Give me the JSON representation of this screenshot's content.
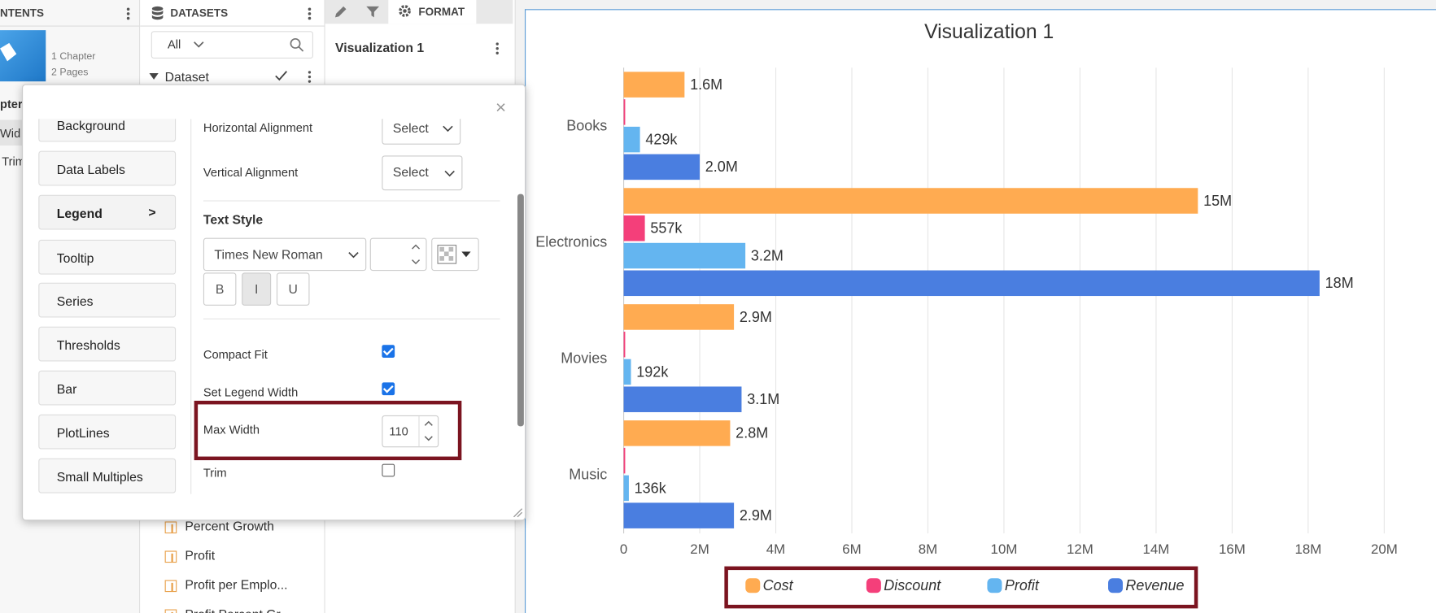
{
  "contents_panel": {
    "title": "NTENTS",
    "meta": [
      "1 Chapter",
      "2 Pages"
    ],
    "items": [
      "pter",
      "Wid",
      "Trim"
    ]
  },
  "datasets_panel": {
    "title": "DATASETS",
    "filter": "All",
    "dataset": "Dataset",
    "fields": [
      "Percent Growth",
      "Profit",
      "Profit per Emplo...",
      "Profit Percent Gr..."
    ]
  },
  "format_panel": {
    "tab": "FORMAT",
    "title": "Visualization 1"
  },
  "dialog": {
    "close": "×",
    "nav": [
      "Background",
      "Data Labels",
      "Legend",
      "Tooltip",
      "Series",
      "Thresholds",
      "Bar",
      "PlotLines",
      "Small Multiples"
    ],
    "nav_arrow": ">",
    "horizontal_alignment": {
      "label": "Horizontal Alignment",
      "value": "Select"
    },
    "vertical_alignment": {
      "label": "Vertical Alignment",
      "value": "Select"
    },
    "text_style": {
      "heading": "Text Style",
      "font": "Times New Roman",
      "buttons": [
        "B",
        "I",
        "U"
      ]
    },
    "compact_fit": {
      "label": "Compact Fit",
      "checked": true
    },
    "set_legend_width": {
      "label": "Set Legend Width",
      "checked": true
    },
    "max_width": {
      "label": "Max Width",
      "value": 110
    },
    "trim": {
      "label": "Trim",
      "checked": false
    }
  },
  "chart_data": {
    "type": "bar",
    "orientation": "horizontal",
    "title": "Visualization 1",
    "categories": [
      "Books",
      "Electronics",
      "Movies",
      "Music"
    ],
    "series": [
      {
        "name": "Cost",
        "color": "#ffab51",
        "values": [
          1600000,
          15100000,
          2900000,
          2800000
        ],
        "value_labels": [
          "1.6M",
          "15M",
          "2.9M",
          "2.8M"
        ]
      },
      {
        "name": "Discount",
        "color": "#f43f7a",
        "values": [
          40000,
          557000,
          40000,
          40000
        ],
        "value_labels": [
          null,
          "557k",
          null,
          null
        ]
      },
      {
        "name": "Profit",
        "color": "#64b5f0",
        "values": [
          429000,
          3200000,
          192000,
          136000
        ],
        "value_labels": [
          "429k",
          "3.2M",
          "192k",
          "136k"
        ]
      },
      {
        "name": "Revenue",
        "color": "#4a7ee0",
        "values": [
          2000000,
          18300000,
          3100000,
          2900000
        ],
        "value_labels": [
          "2.0M",
          "18M",
          "3.1M",
          "2.9M"
        ]
      }
    ],
    "xlim": [
      0,
      21000000
    ],
    "xticks": [
      0,
      {
        "value": 2000000,
        "label": "2M"
      },
      {
        "value": 4000000,
        "label": "4M"
      },
      {
        "value": 6000000,
        "label": "6M"
      },
      {
        "value": 8000000,
        "label": "8M"
      },
      {
        "value": 10000000,
        "label": "10M"
      },
      {
        "value": 12000000,
        "label": "12M"
      },
      {
        "value": 14000000,
        "label": "14M"
      },
      {
        "value": 16000000,
        "label": "16M"
      },
      {
        "value": 18000000,
        "label": "18M"
      },
      {
        "value": 20000000,
        "label": "20M"
      }
    ],
    "grid": true,
    "legend": "bottom"
  }
}
